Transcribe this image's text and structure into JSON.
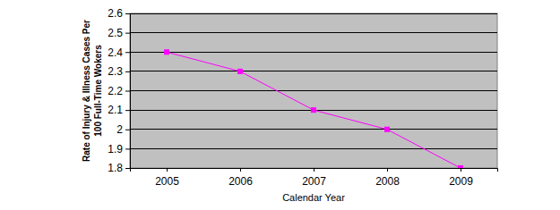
{
  "chart_data": {
    "type": "line",
    "categories": [
      "2005",
      "2006",
      "2007",
      "2008",
      "2009"
    ],
    "values": [
      2.4,
      2.3,
      2.1,
      2.0,
      1.8
    ],
    "color": "#ff00ff",
    "marker": "square",
    "line_style": "solid",
    "x_label": "Calendar Year",
    "y_label": [
      "Rate of Injury & Illness Cases Per",
      "100 Full-Time Wokers"
    ],
    "ylim": [
      1.8,
      2.6
    ],
    "yticks": [
      1.8,
      1.9,
      2,
      2.1,
      2.2,
      2.3,
      2.4,
      2.5,
      2.6
    ],
    "grid": true
  }
}
